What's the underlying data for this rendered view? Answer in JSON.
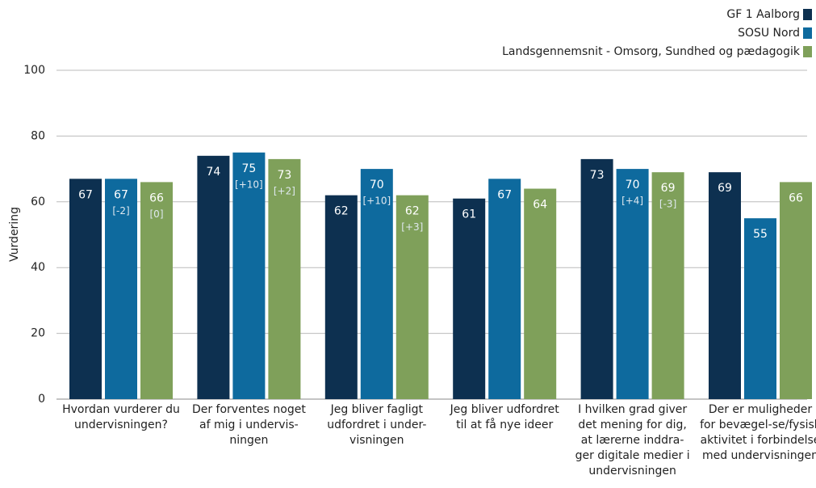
{
  "chart_data": {
    "type": "bar",
    "ylabel": "Vurdering",
    "categories": [
      "Hvordan vurderer du undervisningen?",
      "Der forventes noget af mig i undervis-ningen",
      "Jeg bliver fagligt udfordret i under-visningen",
      "Jeg bliver udfordret til at få nye ideer",
      "I hvilken grad giver det mening for dig, at lærerne inddra-ger digitale medier i undervisningen",
      "Der er muligheder for bevægel-se/fysisk aktivitet i forbindelse med undervisningen"
    ],
    "series": [
      {
        "name": "GF 1 Aalborg",
        "color": "#0d3050",
        "values": [
          67,
          74,
          62,
          61,
          73,
          69
        ],
        "annotations": [
          null,
          null,
          null,
          null,
          null,
          null
        ]
      },
      {
        "name": "SOSU Nord",
        "color": "#0e6a9e",
        "values": [
          67,
          75,
          70,
          67,
          70,
          55
        ],
        "annotations": [
          "[-2]",
          "[+10]",
          "[+10]",
          null,
          "[+4]",
          null
        ]
      },
      {
        "name": "Landsgennemsnit - Omsorg, Sundhed og pædagogik",
        "color": "#7fa05a",
        "values": [
          66,
          73,
          62,
          64,
          69,
          66
        ],
        "annotations": [
          "[0]",
          "[+2]",
          "[+3]",
          null,
          "[-3]",
          null
        ]
      }
    ],
    "ylim": [
      0,
      100
    ],
    "yticks": [
      0,
      20,
      40,
      60,
      80,
      100
    ],
    "grid": true,
    "legend": "top-right"
  }
}
